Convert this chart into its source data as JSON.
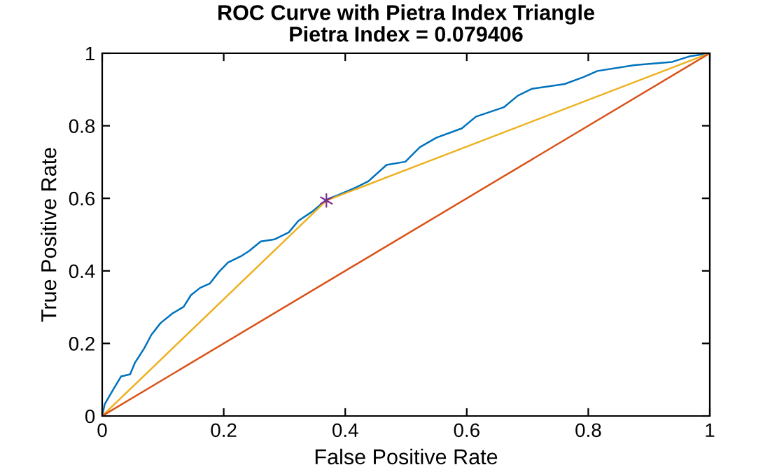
{
  "chart_data": {
    "type": "line",
    "title": "ROC Curve with Pietra Index Triangle\nPietra Index = 0.079406",
    "xlabel": "False Positive Rate",
    "ylabel": "True Positive Rate",
    "xlim": [
      0,
      1
    ],
    "ylim": [
      0,
      1
    ],
    "xticks": [
      0,
      0.2,
      0.4,
      0.6,
      0.8,
      1
    ],
    "yticks": [
      0,
      0.2,
      0.4,
      0.6,
      0.8,
      1
    ],
    "grid": false,
    "legend": false,
    "series": [
      {
        "color": "#0072bd",
        "x": [
          0,
          0.004,
          0.015,
          0.031,
          0.046,
          0.054,
          0.069,
          0.081,
          0.096,
          0.115,
          0.134,
          0.146,
          0.161,
          0.177,
          0.192,
          0.207,
          0.23,
          0.242,
          0.261,
          0.284,
          0.307,
          0.323,
          0.346,
          0.369,
          0.388,
          0.415,
          0.438,
          0.468,
          0.499,
          0.515,
          0.523,
          0.55,
          0.592,
          0.615,
          0.661,
          0.684,
          0.707,
          0.761,
          0.792,
          0.815,
          0.876,
          0.938,
          0.968,
          1
        ],
        "values": [
          0,
          0.032,
          0.064,
          0.109,
          0.115,
          0.147,
          0.186,
          0.224,
          0.256,
          0.282,
          0.301,
          0.333,
          0.353,
          0.365,
          0.397,
          0.423,
          0.442,
          0.455,
          0.481,
          0.487,
          0.506,
          0.538,
          0.564,
          0.596,
          0.609,
          0.628,
          0.647,
          0.692,
          0.701,
          0.728,
          0.741,
          0.767,
          0.793,
          0.825,
          0.851,
          0.883,
          0.902,
          0.915,
          0.934,
          0.951,
          0.967,
          0.976,
          0.992,
          1
        ]
      },
      {
        "color": "#edb120",
        "x": [
          0,
          0.369,
          1
        ],
        "values": [
          0,
          0.594,
          1
        ]
      },
      {
        "color": "#d95319",
        "x": [
          0,
          1
        ],
        "values": [
          0,
          1
        ]
      },
      {
        "type": "scatter",
        "color": "#7e2f8e",
        "marker": "cross",
        "x": [
          0.369
        ],
        "values": [
          0.594
        ]
      }
    ]
  }
}
